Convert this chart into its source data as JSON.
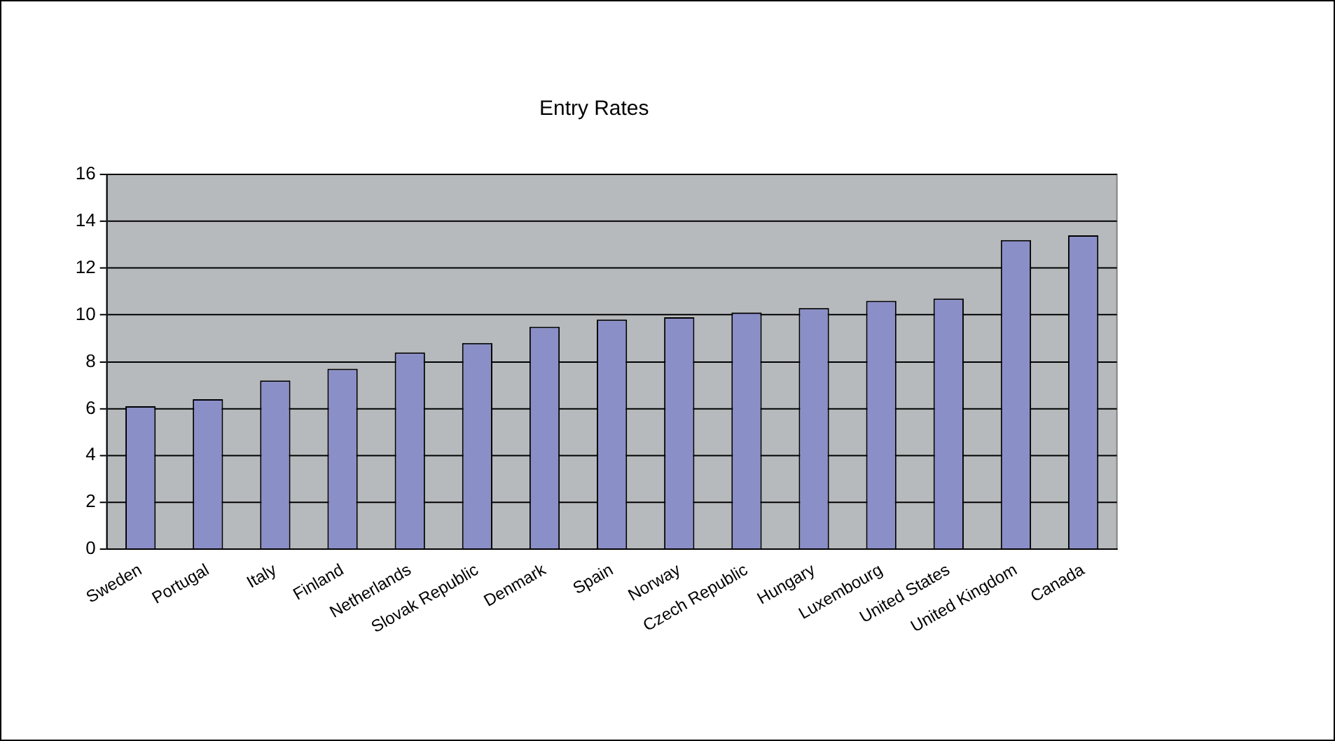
{
  "chart_data": {
    "type": "bar",
    "title": "Entry Rates",
    "categories": [
      "Sweden",
      "Portugal",
      "Italy",
      "Finland",
      "Netherlands",
      "Slovak Republic",
      "Denmark",
      "Spain",
      "Norway",
      "Czech Republic",
      "Hungary",
      "Luxembourg",
      "United States",
      "United Kingdom",
      "Canada"
    ],
    "values": [
      6.1,
      6.4,
      7.2,
      7.7,
      8.4,
      8.8,
      9.5,
      9.8,
      9.9,
      10.1,
      10.3,
      10.6,
      10.7,
      13.2,
      13.4
    ],
    "color": "#8b8fc8",
    "ylim": [
      0,
      16
    ],
    "yticks": [
      0,
      2,
      4,
      6,
      8,
      10,
      12,
      14,
      16
    ],
    "grid": "y",
    "legend": false
  }
}
